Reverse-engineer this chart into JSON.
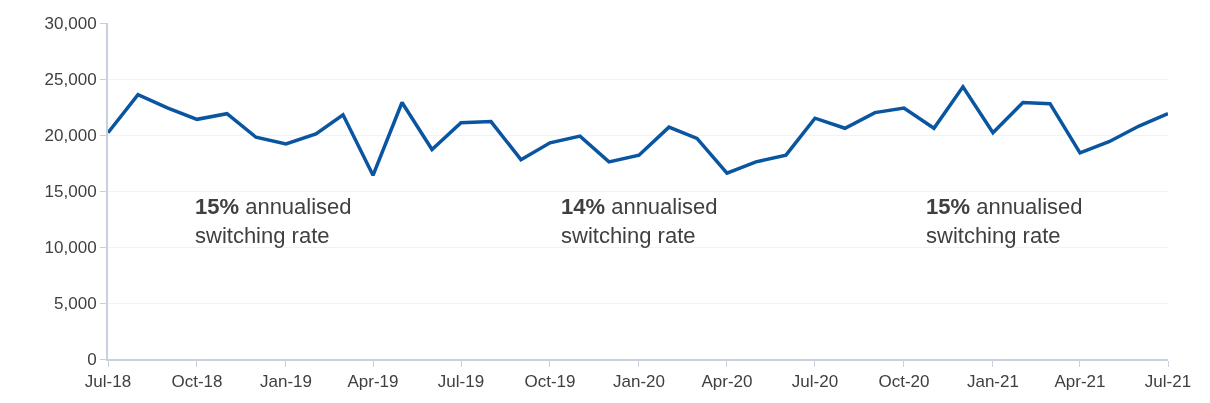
{
  "chart_data": {
    "type": "line",
    "x": [
      "2018-07",
      "2018-08",
      "2018-09",
      "2018-10",
      "2018-11",
      "2018-12",
      "2019-01",
      "2019-02",
      "2019-03",
      "2019-04",
      "2019-05",
      "2019-06",
      "2019-07",
      "2019-08",
      "2019-09",
      "2019-10",
      "2019-11",
      "2019-12",
      "2020-01",
      "2020-02",
      "2020-03",
      "2020-04",
      "2020-05",
      "2020-06",
      "2020-07",
      "2020-08",
      "2020-09",
      "2020-10",
      "2020-11",
      "2020-12",
      "2021-01",
      "2021-02",
      "2021-03",
      "2021-04",
      "2021-05",
      "2021-06",
      "2021-07"
    ],
    "series": [
      {
        "color": "#0a55a0",
        "values": [
          20200,
          23600,
          22400,
          21400,
          21900,
          19800,
          19200,
          20100,
          21800,
          16400,
          22900,
          18700,
          21100,
          21200,
          17800,
          19300,
          19900,
          17600,
          18200,
          20700,
          19700,
          16600,
          17600,
          18200,
          21500,
          20600,
          22000,
          22400,
          20600,
          24300,
          20200,
          22900,
          22800,
          18400,
          19400,
          20800,
          21900
        ]
      }
    ],
    "xlim": [
      "2018-07",
      "2021-07"
    ],
    "xticks": [
      {
        "value": "2018-07",
        "label": "Jul-18"
      },
      {
        "value": "2018-10",
        "label": "Oct-18"
      },
      {
        "value": "2019-01",
        "label": "Jan-19"
      },
      {
        "value": "2019-04",
        "label": "Apr-19"
      },
      {
        "value": "2019-07",
        "label": "Jul-19"
      },
      {
        "value": "2019-10",
        "label": "Oct-19"
      },
      {
        "value": "2020-01",
        "label": "Jan-20"
      },
      {
        "value": "2020-04",
        "label": "Apr-20"
      },
      {
        "value": "2020-07",
        "label": "Jul-20"
      },
      {
        "value": "2020-10",
        "label": "Oct-20"
      },
      {
        "value": "2021-01",
        "label": "Jan-21"
      },
      {
        "value": "2021-04",
        "label": "Apr-21"
      },
      {
        "value": "2021-07",
        "label": "Jul-21"
      }
    ],
    "ylim": [
      0,
      30000
    ],
    "yticks": [
      {
        "value": 0,
        "label": "0"
      },
      {
        "value": 5000,
        "label": "5,000"
      },
      {
        "value": 10000,
        "label": "10,000"
      },
      {
        "value": 15000,
        "label": "15,000"
      },
      {
        "value": 20000,
        "label": "20,000"
      },
      {
        "value": 25000,
        "label": "25,000"
      },
      {
        "value": 30000,
        "label": "30,000"
      }
    ],
    "annotations": [
      "15% annualised\nswitching rate",
      "14% annualised\nswitching rate",
      "15% annualised\nswitching rate"
    ],
    "grid": "y",
    "marker": "none",
    "line_style": "solid"
  }
}
